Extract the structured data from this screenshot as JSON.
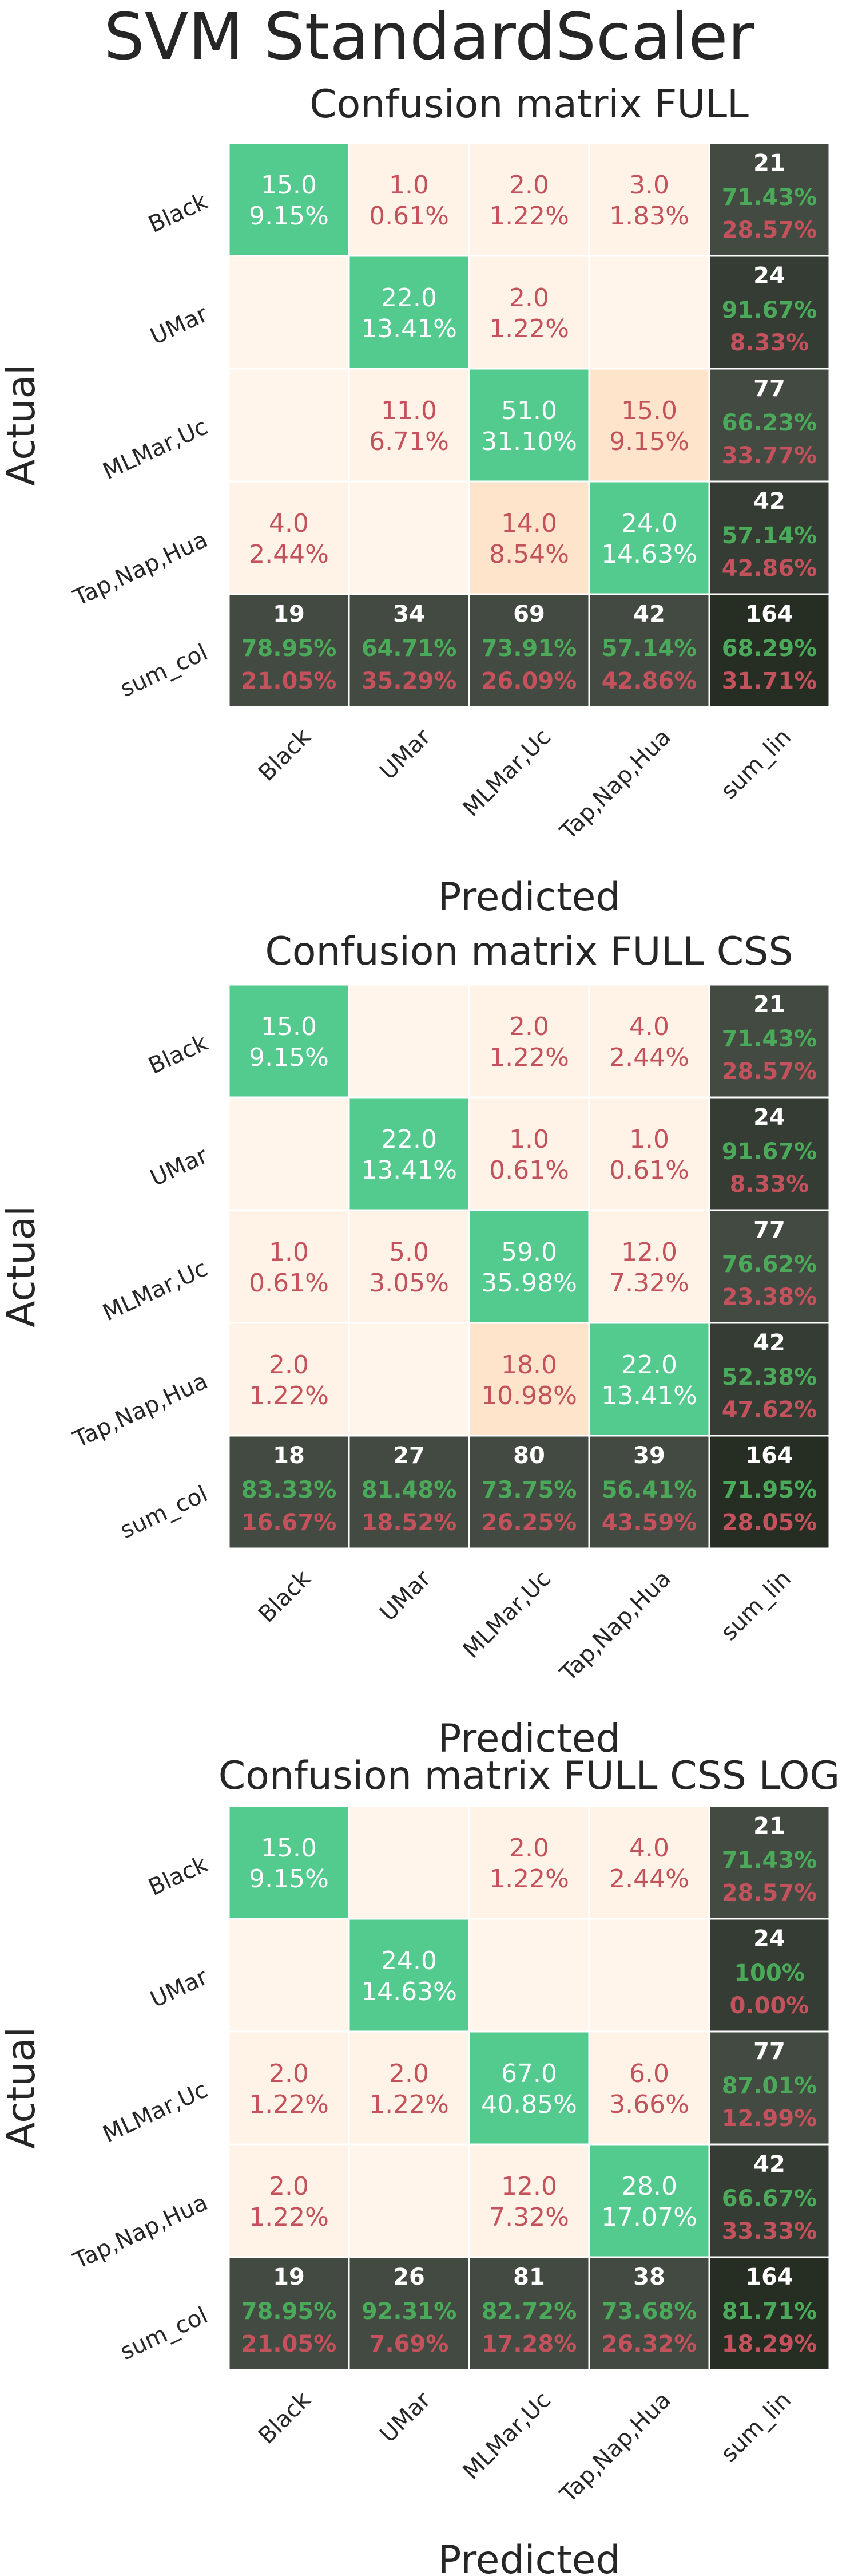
{
  "suptitle": "SVM StandardScaler",
  "colors": {
    "diag": "#54CB8E",
    "cell_light": "#FEF3E6",
    "cell_mid": "#FDE4CB",
    "cell_empty": "#FFF5EB",
    "margin_dark": "#424A41",
    "margin_darker": "#353C34",
    "corner": "#262E24",
    "red_text": "#C3525C",
    "green_text": "#4AAA5A",
    "white_text": "#FFFFFF",
    "axis_text": "#262626",
    "grid_line": "#FFFFFF"
  },
  "chart_data": [
    {
      "type": "heatmap",
      "title": "Confusion matrix FULL",
      "xlabel": "Predicted",
      "ylabel": "Actual",
      "x_tick_labels": [
        "Black",
        "UMar",
        "MLMar,Uc",
        "Tap,Nap,Hua",
        "sum_lin"
      ],
      "y_tick_labels": [
        "Black",
        "UMar",
        "MLMar,Uc",
        "Tap,Nap,Hua",
        "sum_col"
      ],
      "counts": [
        [
          15.0,
          1.0,
          2.0,
          3.0
        ],
        [
          0,
          22.0,
          2.0,
          0
        ],
        [
          0,
          11.0,
          51.0,
          15.0
        ],
        [
          4.0,
          0,
          14.0,
          24.0
        ]
      ],
      "percentages": [
        [
          "9.15%",
          "0.61%",
          "1.22%",
          "1.83%"
        ],
        [
          "",
          "13.41%",
          "1.22%",
          ""
        ],
        [
          "",
          "6.71%",
          "31.10%",
          "9.15%"
        ],
        [
          "2.44%",
          "",
          "8.54%",
          "14.63%"
        ]
      ],
      "count_labels": [
        [
          "15.0",
          "1.0",
          "2.0",
          "3.0"
        ],
        [
          "",
          "22.0",
          "2.0",
          ""
        ],
        [
          "",
          "11.0",
          "51.0",
          "15.0"
        ],
        [
          "4.0",
          "",
          "14.0",
          "24.0"
        ]
      ],
      "sum_lin": [
        {
          "total": "21",
          "correct": "71.43%",
          "error": "28.57%"
        },
        {
          "total": "24",
          "correct": "91.67%",
          "error": "8.33%"
        },
        {
          "total": "77",
          "correct": "66.23%",
          "error": "33.77%"
        },
        {
          "total": "42",
          "correct": "57.14%",
          "error": "42.86%"
        }
      ],
      "sum_col": [
        {
          "total": "19",
          "correct": "78.95%",
          "error": "21.05%"
        },
        {
          "total": "34",
          "correct": "64.71%",
          "error": "35.29%"
        },
        {
          "total": "69",
          "correct": "73.91%",
          "error": "26.09%"
        },
        {
          "total": "42",
          "correct": "57.14%",
          "error": "42.86%"
        }
      ],
      "overall": {
        "total": "164",
        "correct": "68.29%",
        "error": "31.71%"
      }
    },
    {
      "type": "heatmap",
      "title": "Confusion matrix FULL CSS",
      "xlabel": "Predicted",
      "ylabel": "Actual",
      "x_tick_labels": [
        "Black",
        "UMar",
        "MLMar,Uc",
        "Tap,Nap,Hua",
        "sum_lin"
      ],
      "y_tick_labels": [
        "Black",
        "UMar",
        "MLMar,Uc",
        "Tap,Nap,Hua",
        "sum_col"
      ],
      "counts": [
        [
          15.0,
          0,
          2.0,
          4.0
        ],
        [
          0,
          22.0,
          1.0,
          1.0
        ],
        [
          1.0,
          5.0,
          59.0,
          12.0
        ],
        [
          2.0,
          0,
          18.0,
          22.0
        ]
      ],
      "percentages": [
        [
          "9.15%",
          "",
          "1.22%",
          "2.44%"
        ],
        [
          "",
          "13.41%",
          "0.61%",
          "0.61%"
        ],
        [
          "0.61%",
          "3.05%",
          "35.98%",
          "7.32%"
        ],
        [
          "1.22%",
          "",
          "10.98%",
          "13.41%"
        ]
      ],
      "count_labels": [
        [
          "15.0",
          "",
          "2.0",
          "4.0"
        ],
        [
          "",
          "22.0",
          "1.0",
          "1.0"
        ],
        [
          "1.0",
          "5.0",
          "59.0",
          "12.0"
        ],
        [
          "2.0",
          "",
          "18.0",
          "22.0"
        ]
      ],
      "sum_lin": [
        {
          "total": "21",
          "correct": "71.43%",
          "error": "28.57%"
        },
        {
          "total": "24",
          "correct": "91.67%",
          "error": "8.33%"
        },
        {
          "total": "77",
          "correct": "76.62%",
          "error": "23.38%"
        },
        {
          "total": "42",
          "correct": "52.38%",
          "error": "47.62%"
        }
      ],
      "sum_col": [
        {
          "total": "18",
          "correct": "83.33%",
          "error": "16.67%"
        },
        {
          "total": "27",
          "correct": "81.48%",
          "error": "18.52%"
        },
        {
          "total": "80",
          "correct": "73.75%",
          "error": "26.25%"
        },
        {
          "total": "39",
          "correct": "56.41%",
          "error": "43.59%"
        }
      ],
      "overall": {
        "total": "164",
        "correct": "71.95%",
        "error": "28.05%"
      }
    },
    {
      "type": "heatmap",
      "title": "Confusion matrix FULL CSS LOG",
      "xlabel": "Predicted",
      "ylabel": "Actual",
      "x_tick_labels": [
        "Black",
        "UMar",
        "MLMar,Uc",
        "Tap,Nap,Hua",
        "sum_lin"
      ],
      "y_tick_labels": [
        "Black",
        "UMar",
        "MLMar,Uc",
        "Tap,Nap,Hua",
        "sum_col"
      ],
      "counts": [
        [
          15.0,
          0,
          2.0,
          4.0
        ],
        [
          0,
          24.0,
          0,
          0
        ],
        [
          2.0,
          2.0,
          67.0,
          6.0
        ],
        [
          2.0,
          0,
          12.0,
          28.0
        ]
      ],
      "percentages": [
        [
          "9.15%",
          "",
          "1.22%",
          "2.44%"
        ],
        [
          "",
          "14.63%",
          "",
          ""
        ],
        [
          "1.22%",
          "1.22%",
          "40.85%",
          "3.66%"
        ],
        [
          "1.22%",
          "",
          "7.32%",
          "17.07%"
        ]
      ],
      "count_labels": [
        [
          "15.0",
          "",
          "2.0",
          "4.0"
        ],
        [
          "",
          "24.0",
          "",
          ""
        ],
        [
          "2.0",
          "2.0",
          "67.0",
          "6.0"
        ],
        [
          "2.0",
          "",
          "12.0",
          "28.0"
        ]
      ],
      "sum_lin": [
        {
          "total": "21",
          "correct": "71.43%",
          "error": "28.57%"
        },
        {
          "total": "24",
          "correct": "100%",
          "error": "0.00%"
        },
        {
          "total": "77",
          "correct": "87.01%",
          "error": "12.99%"
        },
        {
          "total": "42",
          "correct": "66.67%",
          "error": "33.33%"
        }
      ],
      "sum_col": [
        {
          "total": "19",
          "correct": "78.95%",
          "error": "21.05%"
        },
        {
          "total": "26",
          "correct": "92.31%",
          "error": "7.69%"
        },
        {
          "total": "81",
          "correct": "82.72%",
          "error": "17.28%"
        },
        {
          "total": "38",
          "correct": "73.68%",
          "error": "26.32%"
        }
      ],
      "overall": {
        "total": "164",
        "correct": "81.71%",
        "error": "18.29%"
      }
    }
  ]
}
